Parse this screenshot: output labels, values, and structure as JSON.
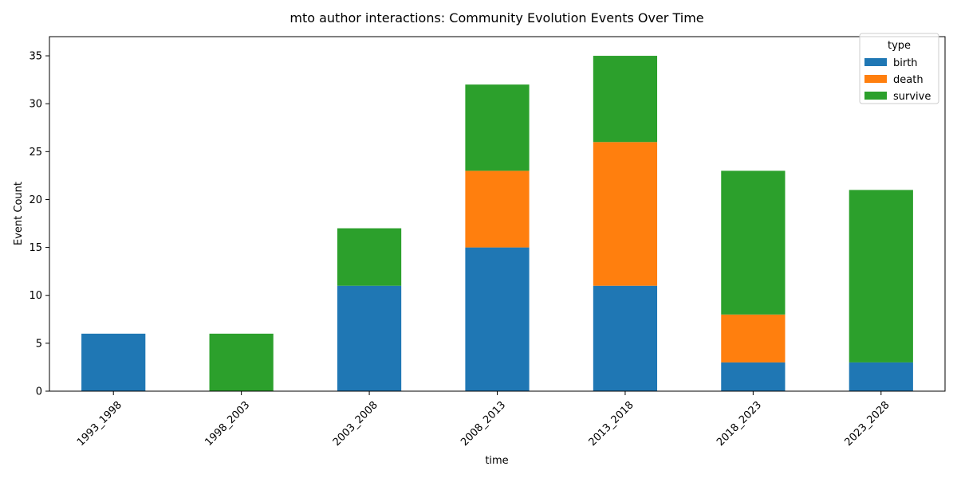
{
  "chart_data": {
    "type": "bar",
    "stacked": true,
    "title": "mto author interactions: Community Evolution Events Over Time",
    "xlabel": "time",
    "ylabel": "Event Count",
    "ylim": [
      0,
      37
    ],
    "yticks": [
      0,
      5,
      10,
      15,
      20,
      25,
      30,
      35
    ],
    "categories": [
      "1993_1998",
      "1998_2003",
      "2003_2008",
      "2008_2013",
      "2013_2018",
      "2018_2023",
      "2023_2028"
    ],
    "series": [
      {
        "name": "birth",
        "color": "#1f77b4",
        "values": [
          6,
          0,
          11,
          15,
          11,
          3,
          3
        ]
      },
      {
        "name": "death",
        "color": "#ff7f0e",
        "values": [
          0,
          0,
          0,
          8,
          15,
          5,
          0
        ]
      },
      {
        "name": "survive",
        "color": "#2ca02c",
        "values": [
          0,
          6,
          6,
          9,
          9,
          15,
          18
        ]
      }
    ],
    "legend": {
      "title": "type",
      "position": "top-right"
    },
    "grid": false
  }
}
